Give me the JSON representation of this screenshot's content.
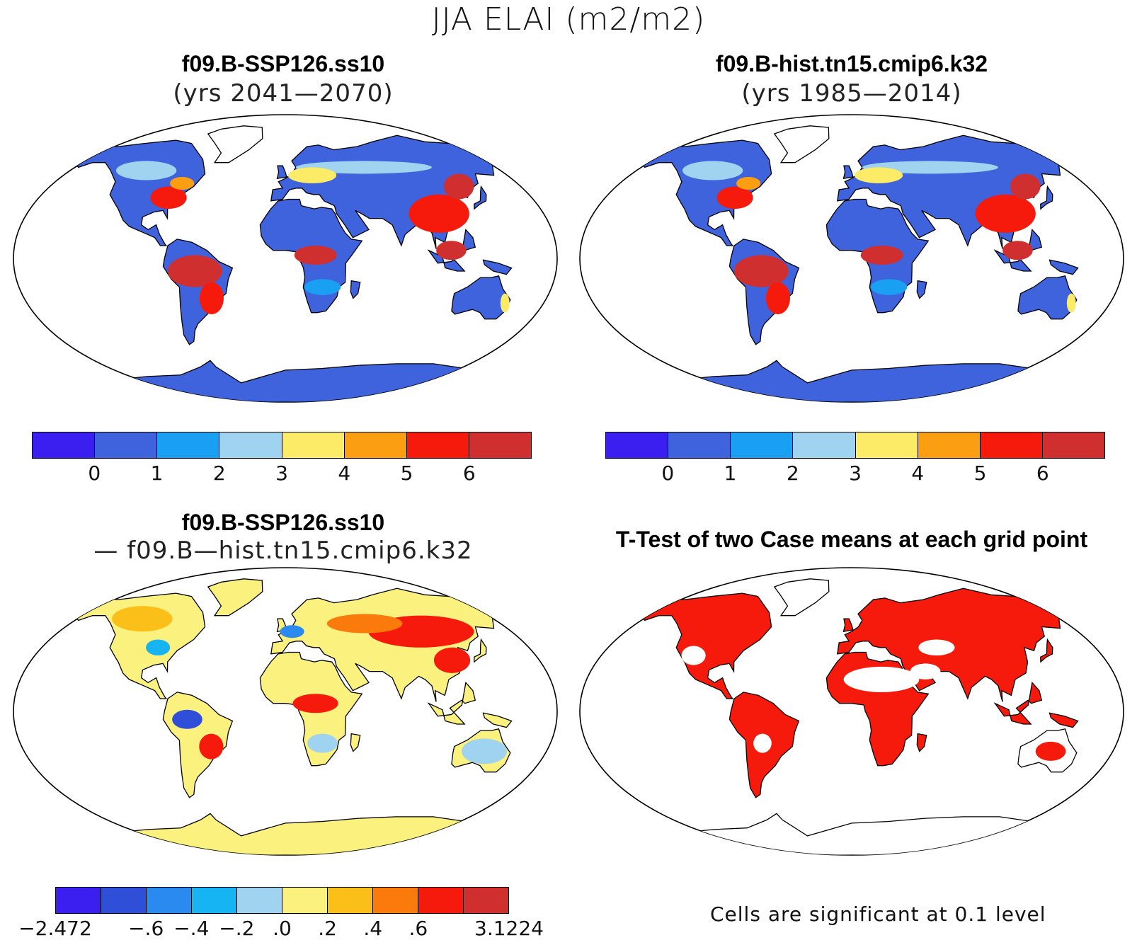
{
  "title": "JJA ELAI (m2/m2)",
  "panels": [
    {
      "id": "case1",
      "title": "f09.B-SSP126.ss10",
      "subtitle": "(yrs 2041—2070)"
    },
    {
      "id": "case2",
      "title": "f09.B-hist.tn15.cmip6.k32",
      "subtitle": "(yrs 1985—2014)"
    },
    {
      "id": "diff",
      "title": "f09.B-SSP126.ss10",
      "subtitle": "— f09.B—hist.tn15.cmip6.k32"
    },
    {
      "id": "ttest",
      "title": "T-Test of two Case means at each grid point",
      "subtitle": ""
    }
  ],
  "colorbar_abs": {
    "colors": [
      "#3b1ef0",
      "#3f63dc",
      "#1aa0f2",
      "#9fd3f0",
      "#fbeb66",
      "#fb9e12",
      "#f51a0c",
      "#cf2f2f"
    ],
    "ticks": [
      "0",
      "1",
      "2",
      "3",
      "4",
      "5",
      "6"
    ]
  },
  "colorbar_diff": {
    "colors": [
      "#3b1ef0",
      "#2f4fd8",
      "#2a8af0",
      "#17b4f4",
      "#9fd3f0",
      "#fbf17e",
      "#fbbf1a",
      "#fb7a0c",
      "#f51a0c",
      "#cf2f2f"
    ],
    "ticks": [
      "−2.472",
      "−.6",
      "−.4",
      "−.2",
      ".0",
      ".2",
      ".4",
      ".6",
      "3.1224"
    ]
  },
  "significance_note": "Cells are significant at 0.1 level",
  "colors": {
    "ocean": "#ffffff",
    "land_low": "#3f63dc",
    "land_high": "#cf2f2f",
    "diff_base": "#fbf17e",
    "significant": "#f51a0c"
  }
}
